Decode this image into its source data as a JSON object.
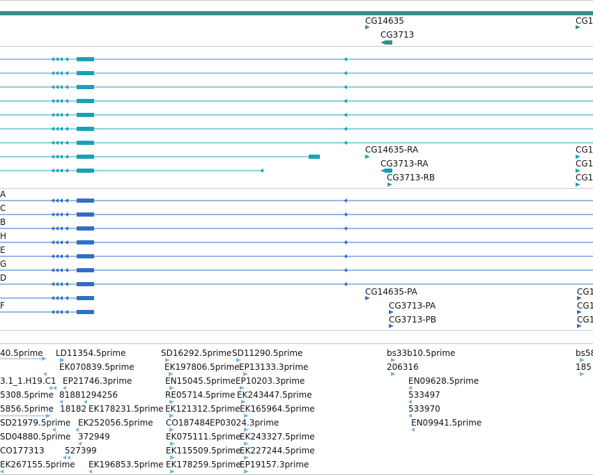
{
  "colors": {
    "gene": "#3a8c8c",
    "transcript": "#17a2b8",
    "protein": "#2f6fc4",
    "est": "#7ab3e0",
    "separator": "#c8c8c8"
  },
  "gene_track": {
    "labels": [
      "CG14635",
      "CG3713",
      "CG1"
    ]
  },
  "transcript_track": {
    "row_count": 8,
    "labels": [
      "CG14635-RA",
      "CG3713-RA",
      "CG3713-RB",
      "CG1",
      "CG1",
      "CG1"
    ]
  },
  "protein_track": {
    "left_letters": [
      "A",
      "C",
      "B",
      "H",
      "E",
      "G",
      "D",
      "F"
    ],
    "labels": [
      "CG14635-PA",
      "CG3713-PA",
      "CG3713-PB",
      "CG1",
      "CG1",
      "CG1"
    ]
  },
  "est_track": {
    "labels": [
      "40.5prime",
      "LD11354.5prime",
      "SD16292.5prime",
      "SD11290.5prime",
      "bs33b10.5prime",
      "bs58",
      "EK070839.5prime",
      "EK197806.5prime",
      "EP13133.3prime",
      "206316",
      "185",
      "3.1_1.H19.C1",
      "EP21746.3prime",
      "EN15045.5prime",
      "EP10203.3prime",
      "EN09628.5prime",
      "5308.5prime",
      "81881294256",
      "RE05714.5prime",
      "EK243447.5prime",
      "533497",
      "5856.5prime",
      "18182",
      "EK178231.5prime",
      "EK121312.5prime",
      "EK165964.5prime",
      "533970",
      "SD21979.5prime",
      "EK252056.5prime",
      "CO187484",
      "EP03024.3prime",
      "EN09941.5prime",
      "SD04880.5prime",
      "372949",
      "EK075111.5prime",
      "EK243327.5prime",
      "CO177313",
      "527399",
      "EK115509.5prime",
      "EK227244.5prime",
      "EK267155.5prime",
      "EK196853.5prime",
      "EK178259.5prime",
      "EP19157.3prime"
    ]
  }
}
